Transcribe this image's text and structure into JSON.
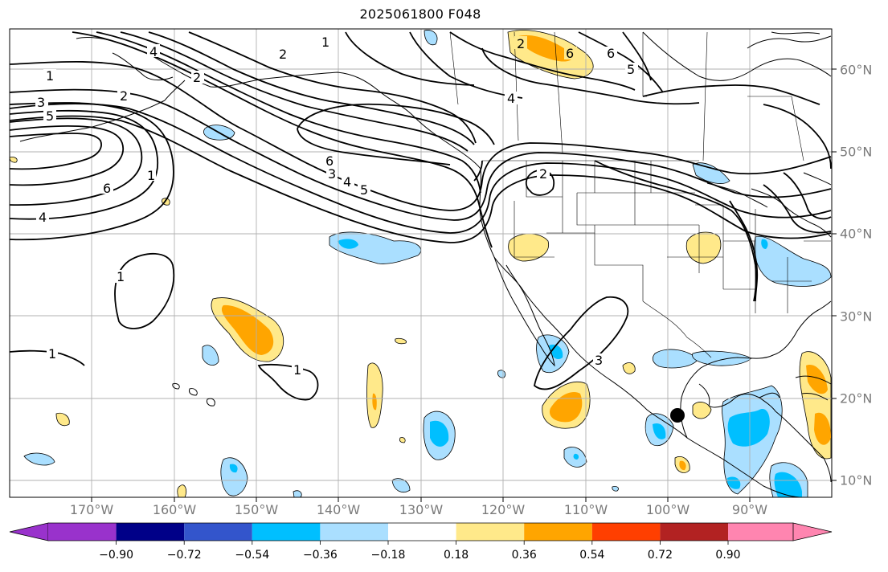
{
  "title": "2025061800 F048",
  "lon_labels": [
    "170°W",
    "160°W",
    "150°W",
    "140°W",
    "130°W",
    "120°W",
    "110°W",
    "100°W",
    "90°W"
  ],
  "lat_labels": [
    "60°N",
    "50°N",
    "40°N",
    "30°N",
    "20°N",
    "10°N"
  ],
  "contour_labels": [
    "1",
    "2",
    "3",
    "4",
    "5",
    "6",
    "1",
    "2",
    "6",
    "4",
    "5",
    "3",
    "6",
    "4",
    "2",
    "1",
    "1",
    "2",
    "1",
    "1",
    "6",
    "2",
    "5",
    "4",
    "3"
  ],
  "colorbar": {
    "ticks": [
      "−0.90",
      "−0.72",
      "−0.54",
      "−0.36",
      "−0.18",
      "0.18",
      "0.36",
      "0.54",
      "0.72",
      "0.90"
    ],
    "colors": [
      "#9932cc",
      "#000088",
      "#3355cc",
      "#00bfff",
      "#aadfff",
      "#ffffff",
      "#ffe98a",
      "#ffa500",
      "#ff3f00",
      "#b22222",
      "#ff85b0"
    ]
  },
  "marker": "storm-center-dot"
}
